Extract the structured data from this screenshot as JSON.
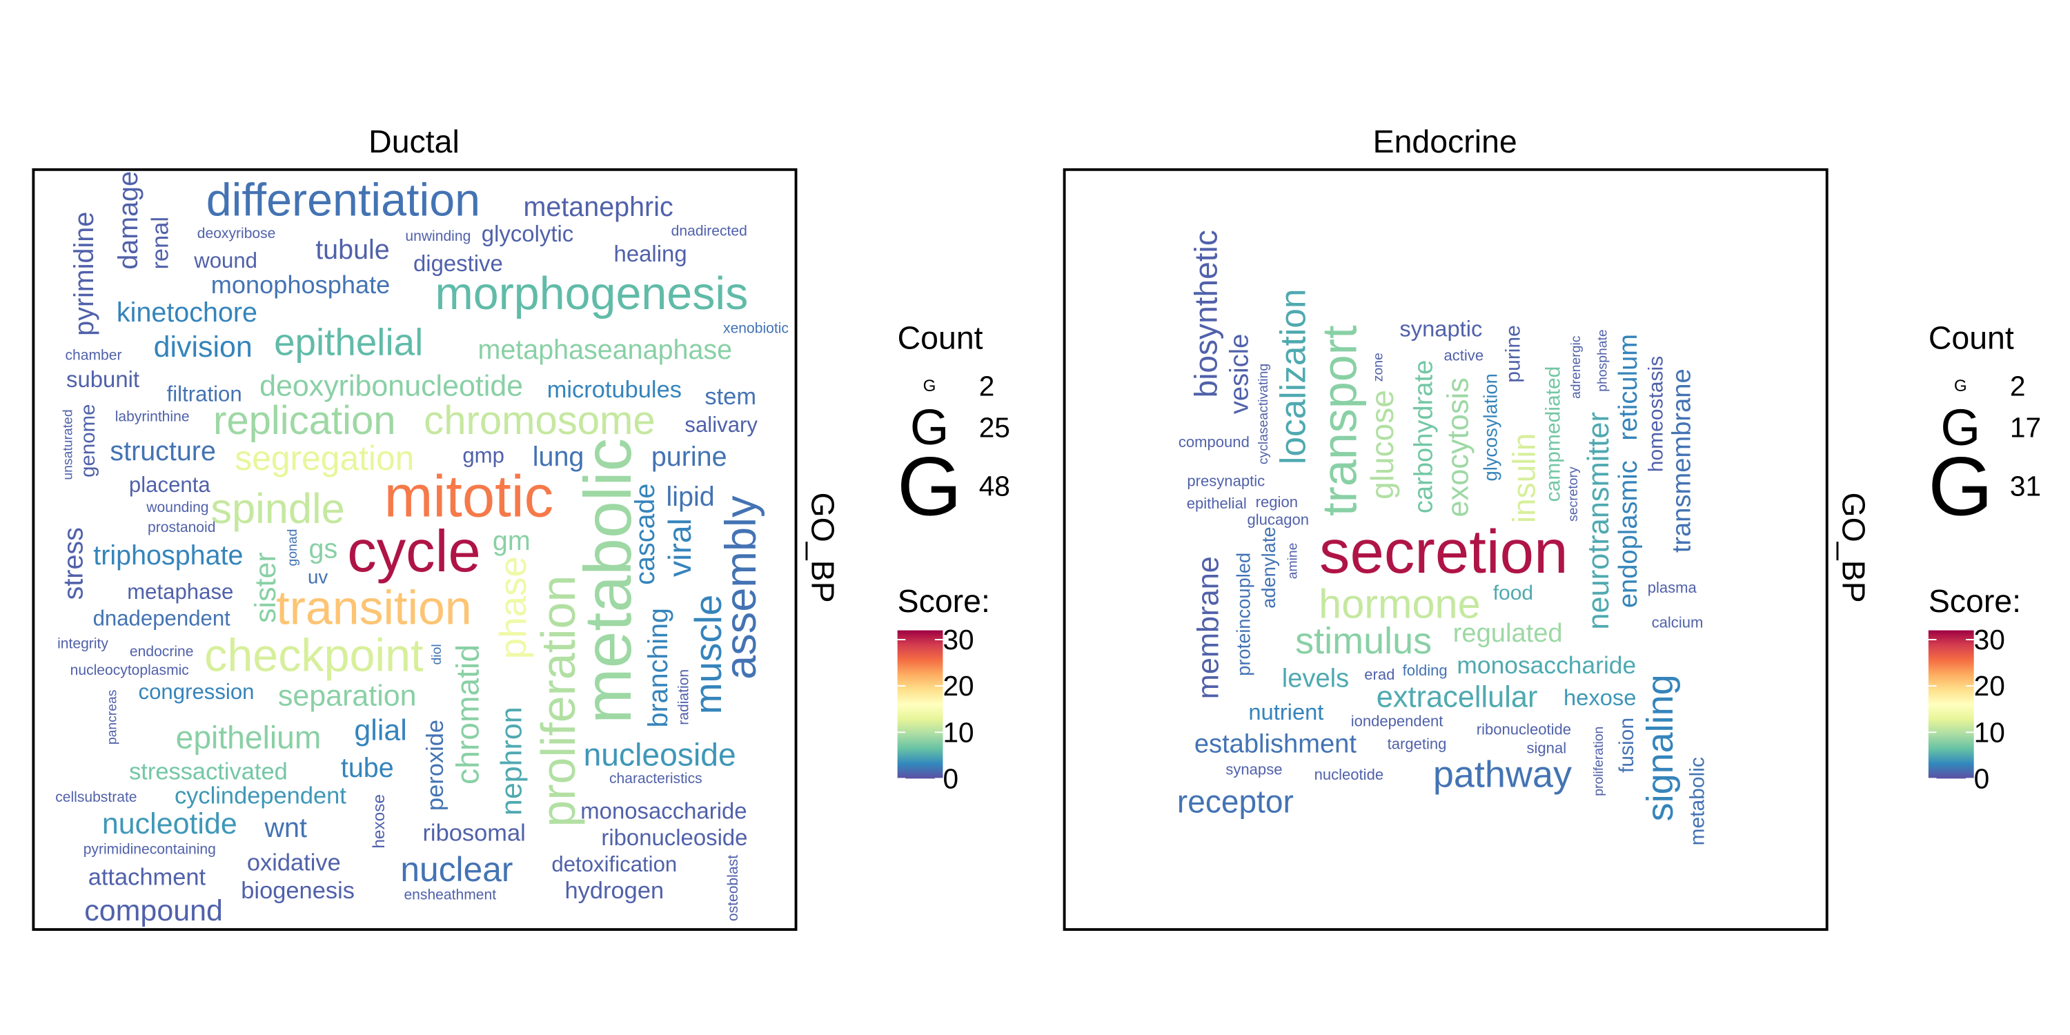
{
  "chart_data": [
    {
      "type": "wordcloud",
      "title": "Ductal",
      "y_label": "GO_BP",
      "palette": [
        "#5e4fa2",
        "#3288bd",
        "#66c2a5",
        "#abdda4",
        "#e6f598",
        "#ffffbf",
        "#fee08b",
        "#fdae61",
        "#f46d43",
        "#d53e4f",
        "#9e0142"
      ],
      "count_legend": {
        "title": "Count",
        "glyph": "G",
        "values": [
          2,
          25,
          48
        ]
      },
      "score_legend": {
        "title": "Score:",
        "lim": [
          0,
          32
        ],
        "ticks": [
          0,
          10,
          20,
          30
        ]
      },
      "words": [
        {
          "text": "differentiation",
          "count": 30,
          "score": 2
        },
        {
          "text": "metanephric",
          "count": 14,
          "score": 1
        },
        {
          "text": "deoxyribose",
          "count": 3,
          "score": 1
        },
        {
          "text": "unwinding",
          "count": 3,
          "score": 1
        },
        {
          "text": "glycolytic",
          "count": 10,
          "score": 1
        },
        {
          "text": "dnadirected",
          "count": 3,
          "score": 1
        },
        {
          "text": "damage",
          "count": 14,
          "score": 1
        },
        {
          "text": "renal",
          "count": 11,
          "score": 1
        },
        {
          "text": "pyrimidine",
          "count": 14,
          "score": 1
        },
        {
          "text": "tubule",
          "count": 14,
          "score": 1
        },
        {
          "text": "wound",
          "count": 9,
          "score": 1
        },
        {
          "text": "digestive",
          "count": 10,
          "score": 1
        },
        {
          "text": "healing",
          "count": 10,
          "score": 1
        },
        {
          "text": "monophosphate",
          "count": 12,
          "score": 2
        },
        {
          "text": "morphogenesis",
          "count": 30,
          "score": 6
        },
        {
          "text": "kinetochore",
          "count": 14,
          "score": 3
        },
        {
          "text": "xenobiotic",
          "count": 3,
          "score": 2
        },
        {
          "text": "epithelial",
          "count": 23,
          "score": 6
        },
        {
          "text": "division",
          "count": 16,
          "score": 3
        },
        {
          "text": "metaphaseanaphase",
          "count": 14,
          "score": 8
        },
        {
          "text": "chamber",
          "count": 3,
          "score": 1
        },
        {
          "text": "subunit",
          "count": 10,
          "score": 1
        },
        {
          "text": "filtration",
          "count": 9,
          "score": 2
        },
        {
          "text": "deoxyribonucleotide",
          "count": 16,
          "score": 8
        },
        {
          "text": "microtubules",
          "count": 11,
          "score": 3
        },
        {
          "text": "stem",
          "count": 11,
          "score": 2
        },
        {
          "text": "labyrinthine",
          "count": 3,
          "score": 1
        },
        {
          "text": "replication",
          "count": 25,
          "score": 9
        },
        {
          "text": "chromosome",
          "count": 25,
          "score": 11
        },
        {
          "text": "salivary",
          "count": 9,
          "score": 1
        },
        {
          "text": "unsaturated",
          "count": 2,
          "score": 1
        },
        {
          "text": "genome",
          "count": 8,
          "score": 1
        },
        {
          "text": "structure",
          "count": 14,
          "score": 2
        },
        {
          "text": "segregation",
          "count": 20,
          "score": 13
        },
        {
          "text": "gmp",
          "count": 9,
          "score": 1
        },
        {
          "text": "lung",
          "count": 14,
          "score": 2
        },
        {
          "text": "metabolic",
          "count": 48,
          "score": 9
        },
        {
          "text": "purine",
          "count": 14,
          "score": 2
        },
        {
          "text": "placenta",
          "count": 9,
          "score": 1
        },
        {
          "text": "mitotic",
          "count": 41,
          "score": 25
        },
        {
          "text": "lipid",
          "count": 14,
          "score": 2
        },
        {
          "text": "wounding",
          "count": 3,
          "score": 1
        },
        {
          "text": "spindle",
          "count": 27,
          "score": 11
        },
        {
          "text": "prostanoid",
          "count": 3,
          "score": 1
        },
        {
          "text": "cascade",
          "count": 14,
          "score": 3
        },
        {
          "text": "viral",
          "count": 18,
          "score": 3
        },
        {
          "text": "assembly",
          "count": 28,
          "score": 2
        },
        {
          "text": "stress",
          "count": 14,
          "score": 1
        },
        {
          "text": "triphosphate",
          "count": 14,
          "score": 3
        },
        {
          "text": "gonad",
          "count": 2,
          "score": 2
        },
        {
          "text": "gs",
          "count": 14,
          "score": 8
        },
        {
          "text": "cycle",
          "count": 41,
          "score": 31
        },
        {
          "text": "gm",
          "count": 14,
          "score": 8
        },
        {
          "text": "sister",
          "count": 16,
          "score": 8
        },
        {
          "text": "uv",
          "count": 7,
          "score": 2
        },
        {
          "text": "metaphase",
          "count": 9,
          "score": 1
        },
        {
          "text": "transition",
          "count": 32,
          "score": 21
        },
        {
          "text": "phase",
          "count": 23,
          "score": 14
        },
        {
          "text": "proliferation",
          "count": 32,
          "score": 10
        },
        {
          "text": "muscle",
          "count": 23,
          "score": 3
        },
        {
          "text": "dnadependent",
          "count": 9,
          "score": 2
        },
        {
          "text": "branching",
          "count": 14,
          "score": 3
        },
        {
          "text": "integrity",
          "count": 3,
          "score": 1
        },
        {
          "text": "endocrine",
          "count": 3,
          "score": 1
        },
        {
          "text": "diol",
          "count": 2,
          "score": 2
        },
        {
          "text": "checkpoint",
          "count": 30,
          "score": 12
        },
        {
          "text": "nucleocytoplasmic",
          "count": 3,
          "score": 1
        },
        {
          "text": "radiation",
          "count": 3,
          "score": 1
        },
        {
          "text": "chromatid",
          "count": 18,
          "score": 8
        },
        {
          "text": "congression",
          "count": 9,
          "score": 3
        },
        {
          "text": "separation",
          "count": 16,
          "score": 8
        },
        {
          "text": "pancreas",
          "count": 2,
          "score": 1
        },
        {
          "text": "glial",
          "count": 16,
          "score": 3
        },
        {
          "text": "epithelium",
          "count": 18,
          "score": 8
        },
        {
          "text": "peroxide",
          "count": 11,
          "score": 2
        },
        {
          "text": "nephron",
          "count": 16,
          "score": 5
        },
        {
          "text": "nucleoside",
          "count": 18,
          "score": 4
        },
        {
          "text": "stressactivated",
          "count": 11,
          "score": 7
        },
        {
          "text": "characteristics",
          "count": 3,
          "score": 1
        },
        {
          "text": "tube",
          "count": 14,
          "score": 3
        },
        {
          "text": "cellsubstrate",
          "count": 3,
          "score": 1
        },
        {
          "text": "cyclindependent",
          "count": 11,
          "score": 4
        },
        {
          "text": "hexose",
          "count": 5,
          "score": 1
        },
        {
          "text": "monosaccharide",
          "count": 10,
          "score": 1
        },
        {
          "text": "nucleotide",
          "count": 16,
          "score": 4
        },
        {
          "text": "wnt",
          "count": 14,
          "score": 2
        },
        {
          "text": "ribosomal",
          "count": 11,
          "score": 1
        },
        {
          "text": "ribonucleoside",
          "count": 10,
          "score": 1
        },
        {
          "text": "pyrimidinecontaining",
          "count": 3,
          "score": 1
        },
        {
          "text": "oxidative",
          "count": 11,
          "score": 1
        },
        {
          "text": "nuclear",
          "count": 20,
          "score": 2
        },
        {
          "text": "detoxification",
          "count": 9,
          "score": 1
        },
        {
          "text": "osteoblast",
          "count": 3,
          "score": 1
        },
        {
          "text": "attachment",
          "count": 11,
          "score": 1
        },
        {
          "text": "biogenesis",
          "count": 11,
          "score": 1
        },
        {
          "text": "hydrogen",
          "count": 11,
          "score": 1
        },
        {
          "text": "ensheathment",
          "count": 3,
          "score": 1
        },
        {
          "text": "compound",
          "count": 16,
          "score": 1
        }
      ]
    },
    {
      "type": "wordcloud",
      "title": "Endocrine",
      "y_label": "GO_BP",
      "palette": [
        "#5e4fa2",
        "#3288bd",
        "#66c2a5",
        "#abdda4",
        "#e6f598",
        "#ffffbf",
        "#fee08b",
        "#fdae61",
        "#f46d43",
        "#d53e4f",
        "#9e0142"
      ],
      "count_legend": {
        "title": "Count",
        "glyph": "G",
        "values": [
          2,
          17,
          31
        ]
      },
      "score_legend": {
        "title": "Score:",
        "lim": [
          0,
          32
        ],
        "ticks": [
          0,
          10,
          20,
          30
        ]
      },
      "words": [
        {
          "text": "biosynthetic",
          "count": 12,
          "score": 1
        },
        {
          "text": "vesicle",
          "count": 9,
          "score": 1
        },
        {
          "text": "localization",
          "count": 14,
          "score": 5
        },
        {
          "text": "transport",
          "count": 21,
          "score": 8
        },
        {
          "text": "cyclaseactivating",
          "count": 2,
          "score": 1
        },
        {
          "text": "zone",
          "count": 2,
          "score": 1
        },
        {
          "text": "glucose",
          "count": 12,
          "score": 10
        },
        {
          "text": "synaptic",
          "count": 7,
          "score": 1
        },
        {
          "text": "carbohydrate",
          "count": 9,
          "score": 7
        },
        {
          "text": "active",
          "count": 3,
          "score": 1
        },
        {
          "text": "exocytosis",
          "count": 11,
          "score": 9
        },
        {
          "text": "glycosylation",
          "count": 5,
          "score": 3
        },
        {
          "text": "purine",
          "count": 6,
          "score": 1
        },
        {
          "text": "insulin",
          "count": 12,
          "score": 12
        },
        {
          "text": "campmediated",
          "count": 6,
          "score": 7
        },
        {
          "text": "secretory",
          "count": 2,
          "score": 1
        },
        {
          "text": "adrenergic",
          "count": 2,
          "score": 1
        },
        {
          "text": "phosphate",
          "count": 2,
          "score": 1
        },
        {
          "text": "neurotransmitter",
          "count": 11,
          "score": 5
        },
        {
          "text": "reticulum",
          "count": 9,
          "score": 3
        },
        {
          "text": "endoplasmic",
          "count": 9,
          "score": 3
        },
        {
          "text": "homeostasis",
          "count": 6,
          "score": 1
        },
        {
          "text": "transmembrane",
          "count": 9,
          "score": 2
        },
        {
          "text": "compound",
          "count": 3,
          "score": 1
        },
        {
          "text": "presynaptic",
          "count": 3,
          "score": 1
        },
        {
          "text": "epithelial",
          "count": 3,
          "score": 1
        },
        {
          "text": "region",
          "count": 3,
          "score": 1
        },
        {
          "text": "glucagon",
          "count": 3,
          "score": 1
        },
        {
          "text": "adenylate",
          "count": 5,
          "score": 2
        },
        {
          "text": "amine",
          "count": 2,
          "score": 1
        },
        {
          "text": "proteincoupled",
          "count": 5,
          "score": 2
        },
        {
          "text": "membrane",
          "count": 11,
          "score": 1
        },
        {
          "text": "secretion",
          "count": 28,
          "score": 31
        },
        {
          "text": "plasma",
          "count": 3,
          "score": 1
        },
        {
          "text": "hormone",
          "count": 17,
          "score": 11
        },
        {
          "text": "food",
          "count": 6,
          "score": 5
        },
        {
          "text": "calcium",
          "count": 3,
          "score": 1
        },
        {
          "text": "stimulus",
          "count": 15,
          "score": 8
        },
        {
          "text": "regulated",
          "count": 9,
          "score": 9
        },
        {
          "text": "levels",
          "count": 9,
          "score": 5
        },
        {
          "text": "erad",
          "count": 3,
          "score": 1
        },
        {
          "text": "folding",
          "count": 3,
          "score": 2
        },
        {
          "text": "monosaccharide",
          "count": 8,
          "score": 5
        },
        {
          "text": "signaling",
          "count": 15,
          "score": 3
        },
        {
          "text": "extracellular",
          "count": 11,
          "score": 5
        },
        {
          "text": "hexose",
          "count": 7,
          "score": 4
        },
        {
          "text": "nutrient",
          "count": 7,
          "score": 3
        },
        {
          "text": "iondependent",
          "count": 3,
          "score": 1
        },
        {
          "text": "fusion",
          "count": 6,
          "score": 2
        },
        {
          "text": "ribonucleotide",
          "count": 3,
          "score": 1
        },
        {
          "text": "establishment",
          "count": 9,
          "score": 2
        },
        {
          "text": "targeting",
          "count": 3,
          "score": 1
        },
        {
          "text": "signal",
          "count": 3,
          "score": 1
        },
        {
          "text": "metabolic",
          "count": 6,
          "score": 2
        },
        {
          "text": "synapse",
          "count": 3,
          "score": 1
        },
        {
          "text": "nucleotide",
          "count": 3,
          "score": 1
        },
        {
          "text": "pathway",
          "count": 15,
          "score": 2
        },
        {
          "text": "proliferation",
          "count": 2,
          "score": 1
        },
        {
          "text": "receptor",
          "count": 12,
          "score": 2
        }
      ]
    }
  ]
}
